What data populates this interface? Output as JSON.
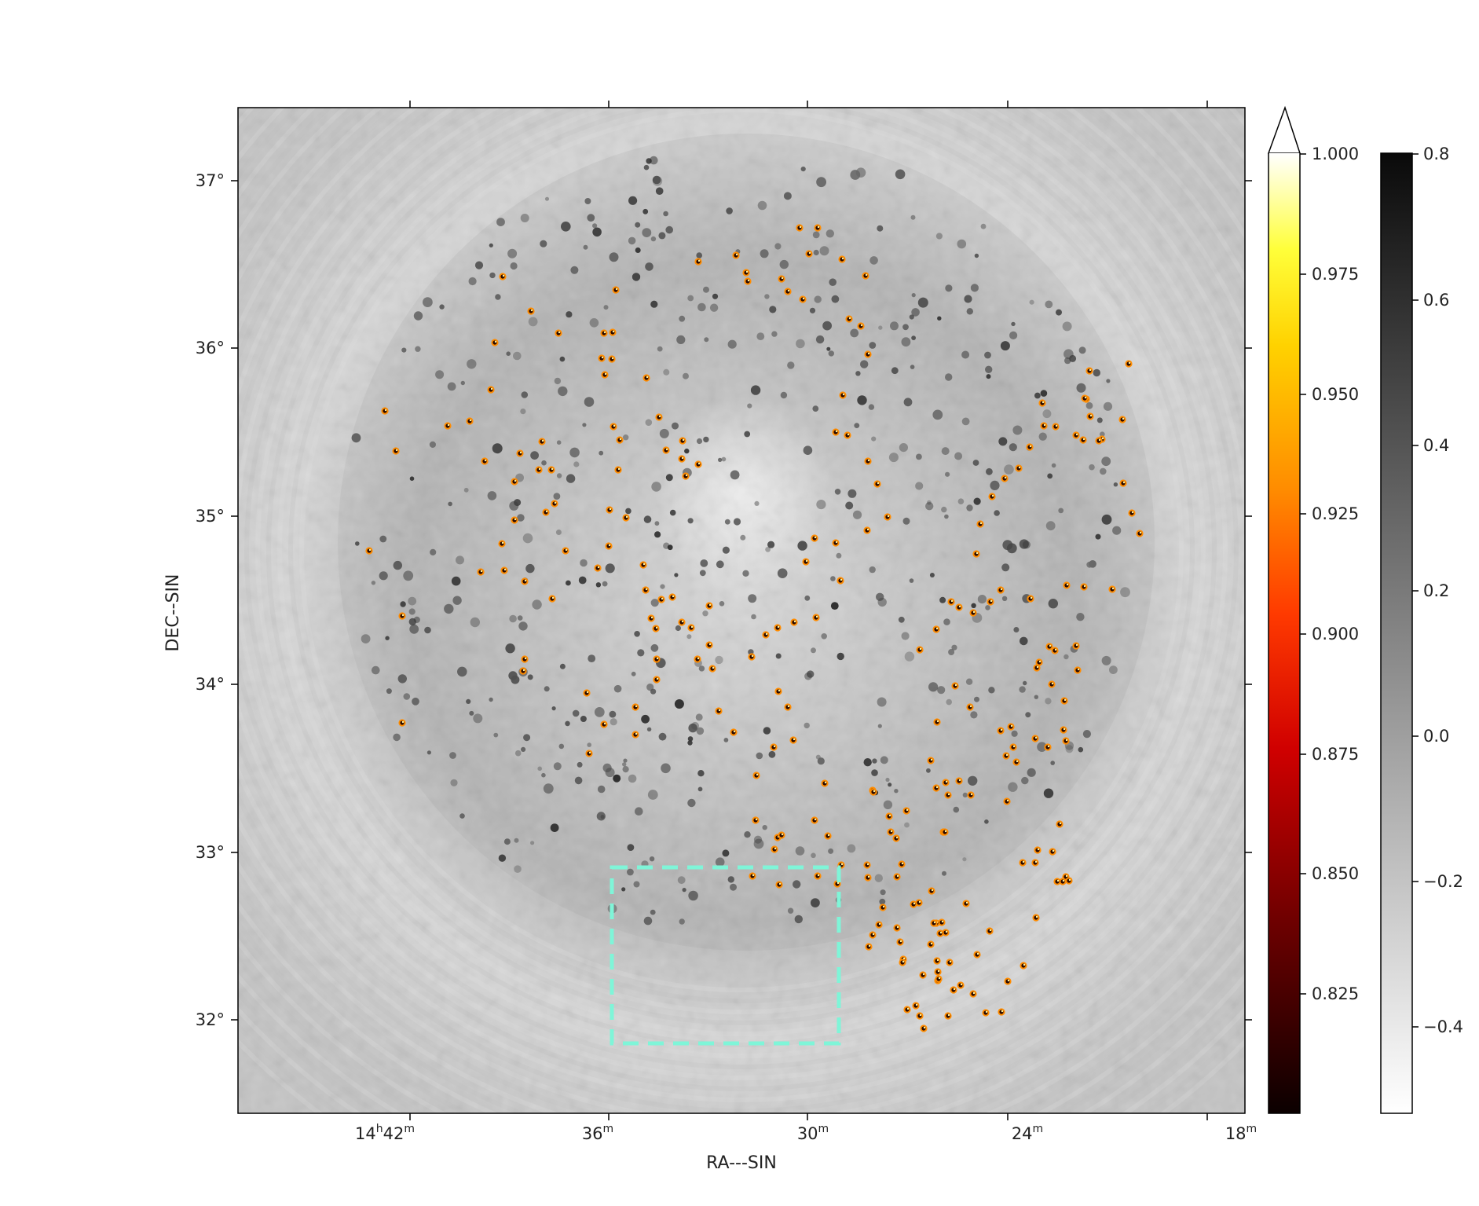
{
  "image": {
    "background": "grayscale radio sky map with circular noise pattern and dark point sources",
    "sources_color": "#ff8c00",
    "highlight_box_color": "#7ff5d8"
  },
  "axes": {
    "xlabel": "RA---SIN",
    "ylabel": "DEC--SIN",
    "x_ticks": [
      {
        "label": "14h42m",
        "main": "14",
        "sup1": "h",
        "mid": "42",
        "sup2": "m"
      },
      {
        "label": "36m",
        "main": "36",
        "sup2": "m"
      },
      {
        "label": "30m",
        "main": "30",
        "sup2": "m"
      },
      {
        "label": "24m",
        "main": "24",
        "sup2": "m"
      },
      {
        "label": "18m",
        "main": "18",
        "sup2": "m"
      }
    ],
    "y_ticks": [
      "37°",
      "36°",
      "35°",
      "34°",
      "33°",
      "32°"
    ]
  },
  "colorbar_hot": {
    "ticks": [
      "1.000",
      "0.975",
      "0.950",
      "0.925",
      "0.900",
      "0.875",
      "0.850",
      "0.825"
    ],
    "extend": "max"
  },
  "colorbar_gray": {
    "ticks": [
      "0.8",
      "0.6",
      "0.4",
      "0.2",
      "0.0",
      "−0.2",
      "−0.4"
    ]
  }
}
